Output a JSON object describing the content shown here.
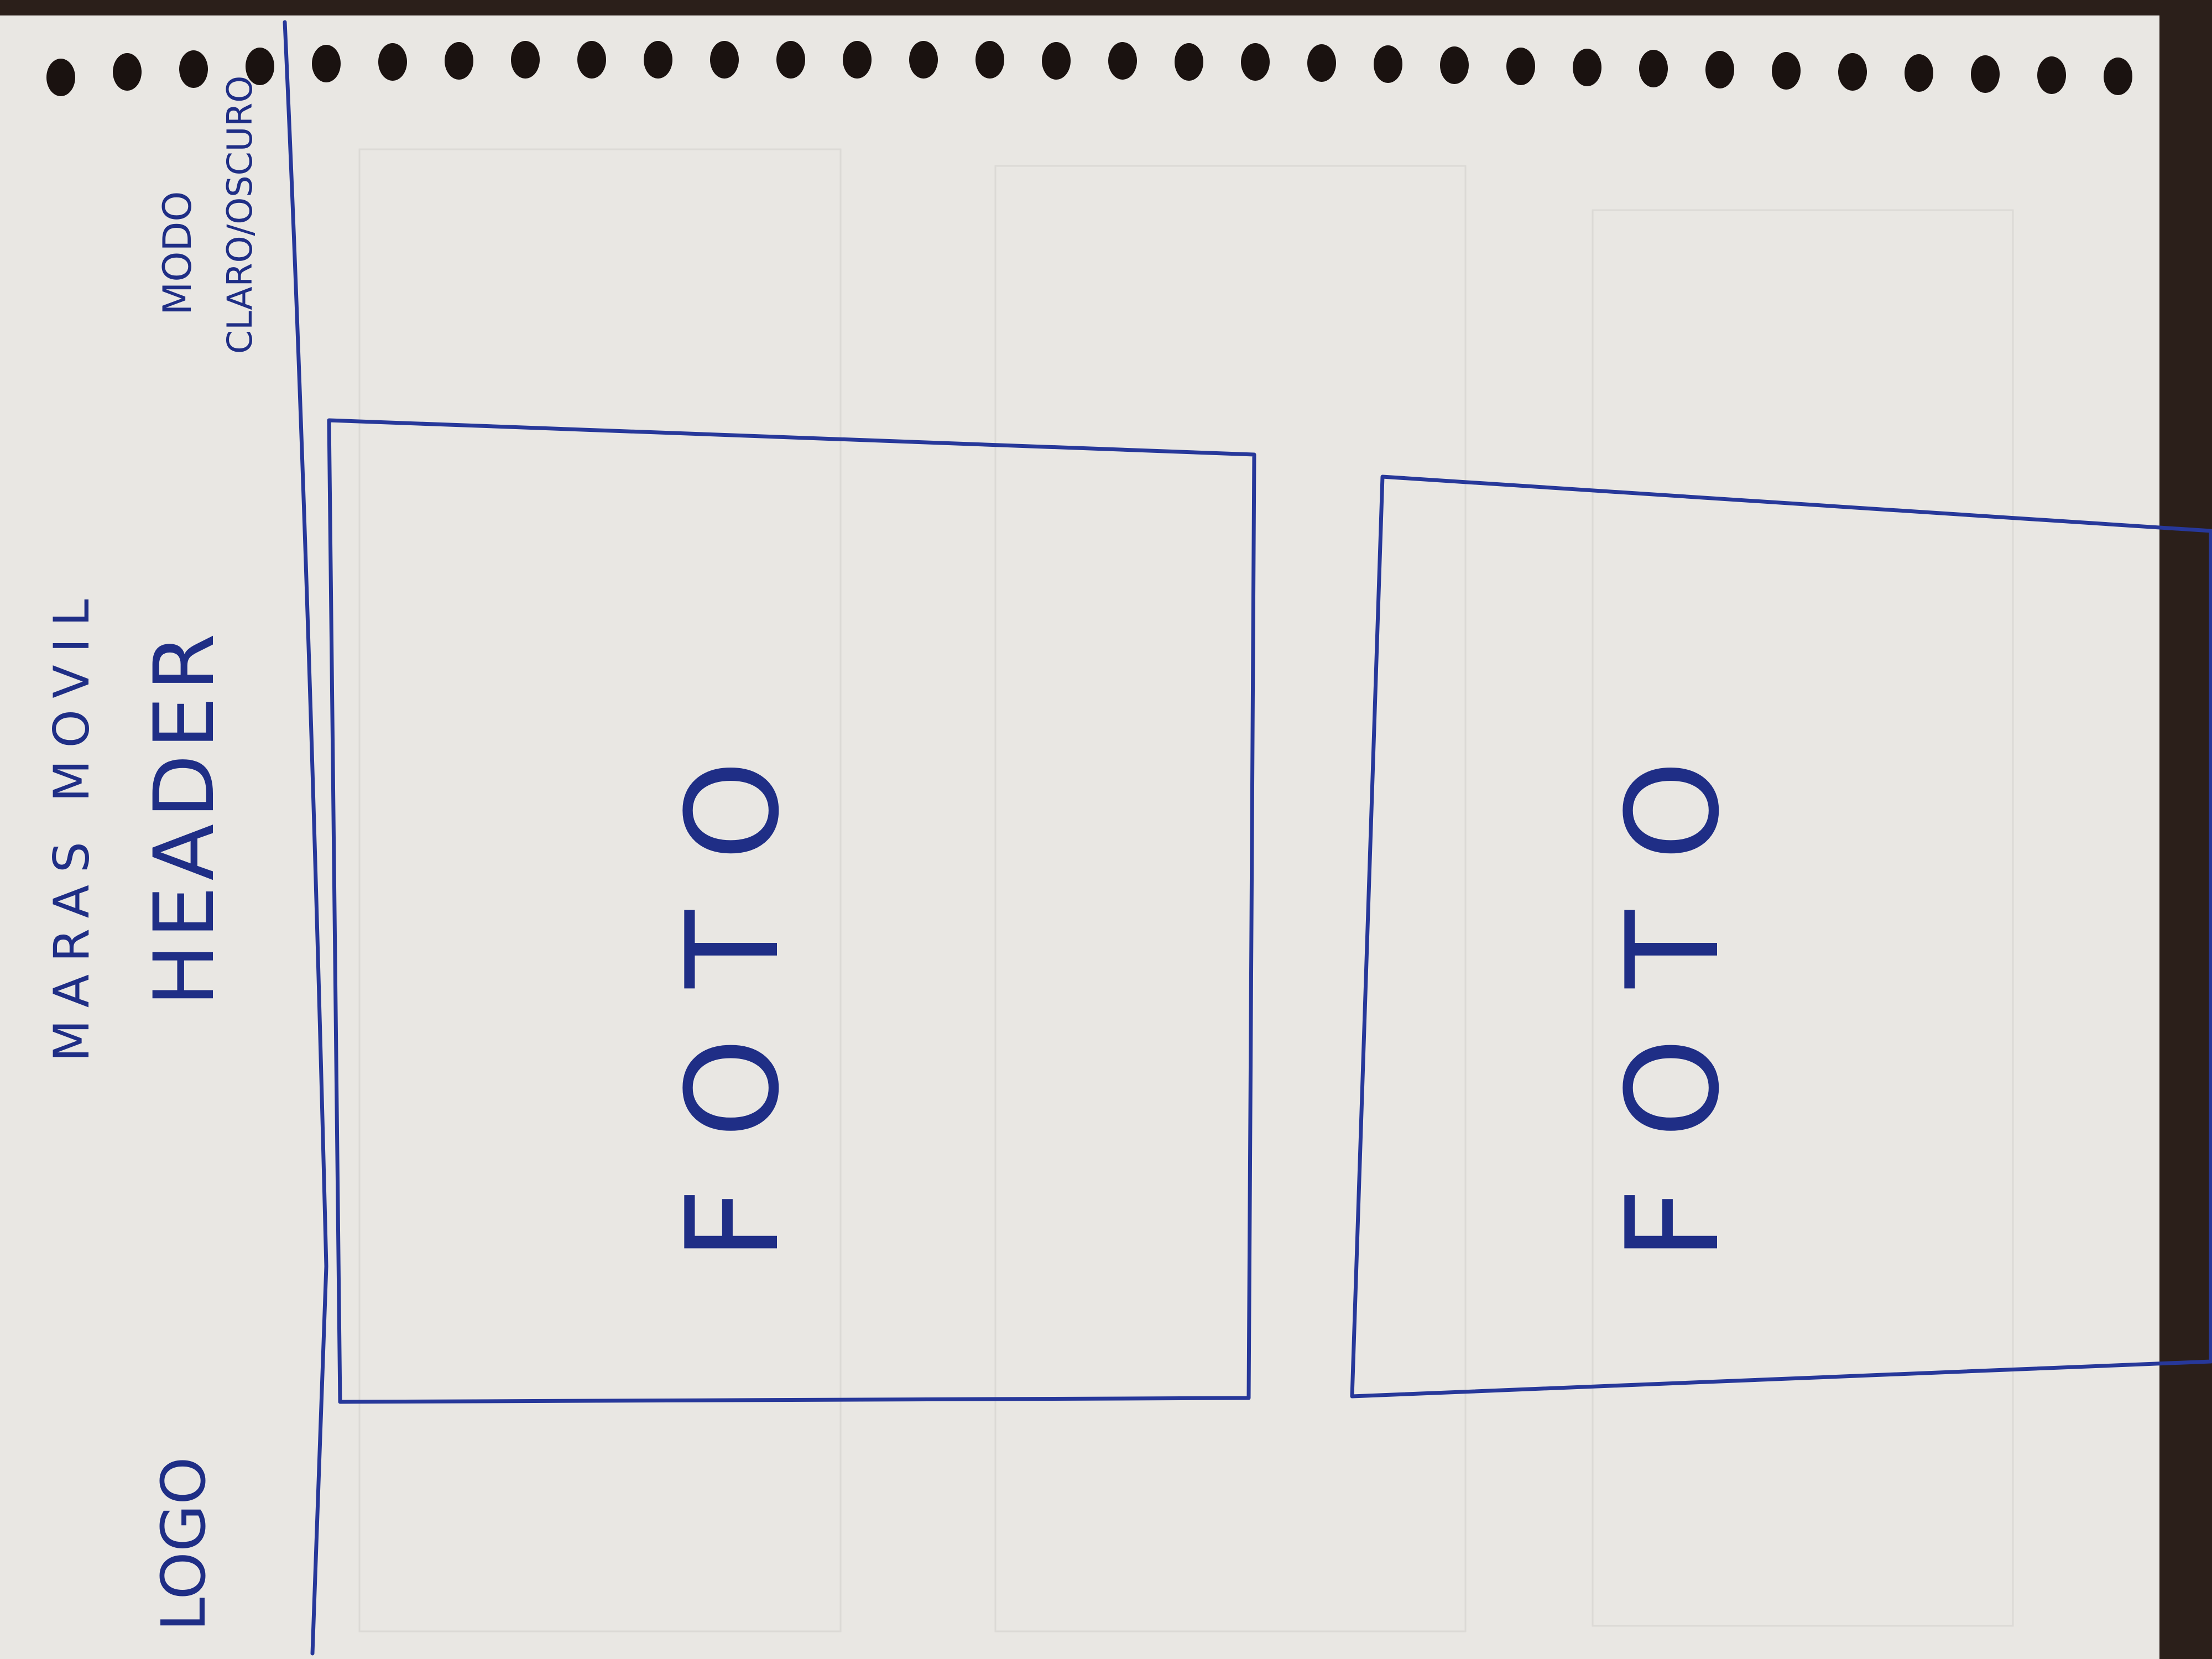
{
  "header": {
    "logo": "LOGO",
    "brand": "MARAS MOVIL",
    "title": "HEADER",
    "mode_line1": "MODO",
    "mode_line2": "CLARO/OSCURO"
  },
  "cards": [
    {
      "label": "FOTO"
    },
    {
      "label": "FOTO"
    }
  ],
  "colors": {
    "paper": "#e9e7e3",
    "ink": "#27389a",
    "background": "#3a2a22"
  }
}
